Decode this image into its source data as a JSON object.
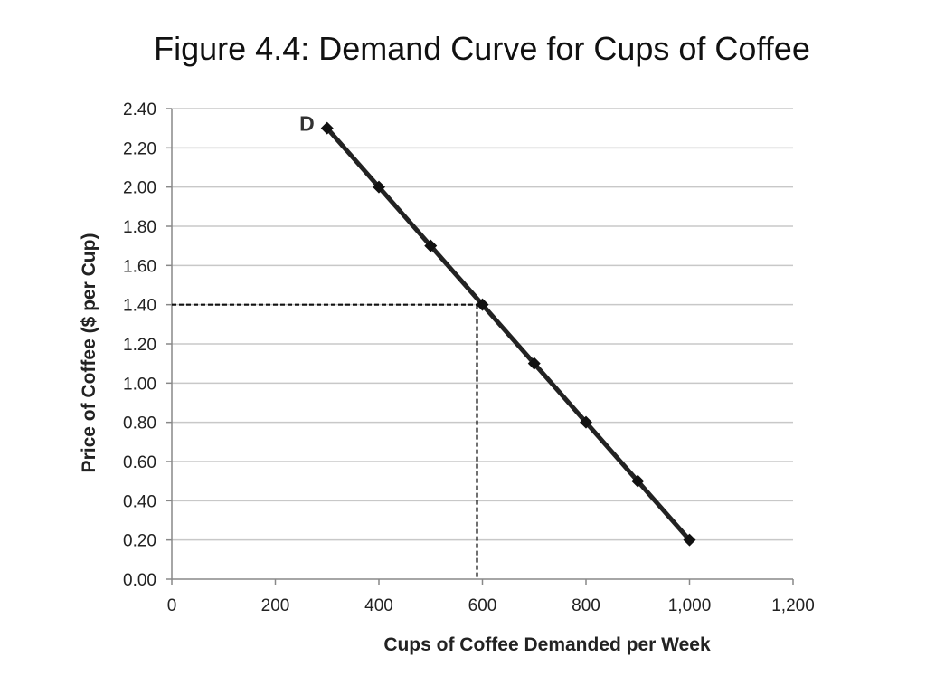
{
  "chart_data": {
    "type": "line",
    "title": "Figure 4.4: Demand Curve for Cups of Coffee",
    "xlabel": "Cups of Coffee Demanded per Week",
    "ylabel": "Price of Coffee ($ per Cup)",
    "xlim": [
      0,
      1200
    ],
    "ylim": [
      0,
      2.4
    ],
    "x_ticks": [
      0,
      200,
      400,
      600,
      800,
      1000,
      1200
    ],
    "x_tick_labels": [
      "0",
      "200",
      "400",
      "600",
      "800",
      "1,000",
      "1,200"
    ],
    "y_ticks": [
      0,
      0.2,
      0.4,
      0.6,
      0.8,
      1.0,
      1.2,
      1.4,
      1.6,
      1.8,
      2.0,
      2.2,
      2.4
    ],
    "y_tick_labels": [
      "0.00",
      "0.20",
      "0.40",
      "0.60",
      "0.80",
      "1.00",
      "1.20",
      "1.40",
      "1.60",
      "1.80",
      "2.00",
      "2.20",
      "2.40"
    ],
    "grid": "horizontal",
    "series": [
      {
        "name": "D",
        "x": [
          300,
          400,
          500,
          600,
          700,
          800,
          900,
          1000
        ],
        "y": [
          2.3,
          2.0,
          1.7,
          1.4,
          1.1,
          0.8,
          0.5,
          0.2
        ]
      }
    ],
    "reference_lines": {
      "x": 600,
      "y": 1.4,
      "style": "dashed"
    },
    "colors": {
      "line": "#222222",
      "marker": "#111111",
      "grid": "#c8c8c8",
      "axis": "#888888",
      "reference": "#111111"
    }
  }
}
